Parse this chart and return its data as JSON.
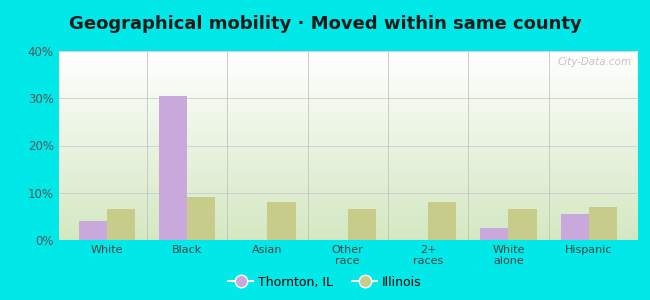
{
  "title": "Geographical mobility · Moved within same county",
  "categories": [
    "White",
    "Black",
    "Asian",
    "Other\nrace",
    "2+\nraces",
    "White\nalone",
    "Hispanic"
  ],
  "thornton_values": [
    4.0,
    30.5,
    0.0,
    0.0,
    0.0,
    2.5,
    5.5
  ],
  "illinois_values": [
    6.5,
    9.0,
    8.0,
    6.5,
    8.0,
    6.5,
    7.0
  ],
  "thornton_color": "#c9a8dc",
  "illinois_color": "#c8cc8a",
  "bar_width": 0.35,
  "ylim": [
    0,
    40
  ],
  "yticks": [
    0,
    10,
    20,
    30,
    40
  ],
  "ytick_labels": [
    "0%",
    "10%",
    "20%",
    "30%",
    "40%"
  ],
  "outer_background": "#00e8e8",
  "title_fontsize": 13,
  "legend_labels": [
    "Thornton, IL",
    "Illinois"
  ],
  "watermark": "City-Data.com",
  "bg_top_color": "#ffffff",
  "bg_bottom_color": "#d4e8c2"
}
